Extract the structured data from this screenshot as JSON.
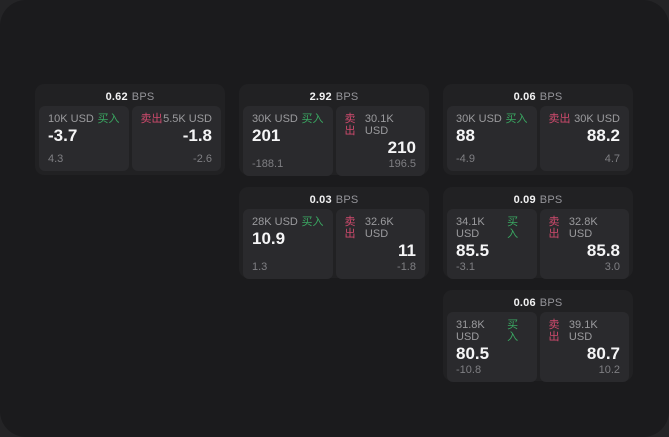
{
  "page": {
    "bps_label": "BPS",
    "buy_label": "买入",
    "sell_label": "卖出",
    "colors": {
      "outer_bg": "#242426",
      "panel_bg": "#1b1b1d",
      "card_bg": "#212123",
      "tile_bg": "#2a2a2d",
      "buy_green": "#3aa862",
      "sell_rose": "#cf4a6d"
    }
  },
  "cards": [
    {
      "bps": "0.62",
      "col": 1,
      "row": 1,
      "buy": {
        "size": "10K USD",
        "value": "-3.7",
        "sub": "4.3"
      },
      "sell": {
        "size": "5.5K USD",
        "value": "-1.8",
        "sub": "-2.6"
      }
    },
    {
      "bps": "2.92",
      "col": 2,
      "row": 1,
      "buy": {
        "size": "30K USD",
        "value": "201",
        "sub": "-188.1"
      },
      "sell": {
        "size": "30.1K USD",
        "value": "210",
        "sub": "196.5"
      }
    },
    {
      "bps": "0.06",
      "col": 3,
      "row": 1,
      "buy": {
        "size": "30K USD",
        "value": "88",
        "sub": "-4.9"
      },
      "sell": {
        "size": "30K USD",
        "value": "88.2",
        "sub": "4.7"
      }
    },
    {
      "bps": "0.03",
      "col": 2,
      "row": 2,
      "buy": {
        "size": "28K USD",
        "value": "10.9",
        "sub": "1.3"
      },
      "sell": {
        "size": "32.6K USD",
        "value": "11",
        "sub": "-1.8"
      }
    },
    {
      "bps": "0.09",
      "col": 3,
      "row": 2,
      "buy": {
        "size": "34.1K USD",
        "value": "85.5",
        "sub": "-3.1"
      },
      "sell": {
        "size": "32.8K USD",
        "value": "85.8",
        "sub": "3.0"
      }
    },
    {
      "bps": "0.06",
      "col": 3,
      "row": 3,
      "buy": {
        "size": "31.8K USD",
        "value": "80.5",
        "sub": "-10.8"
      },
      "sell": {
        "size": "39.1K USD",
        "value": "80.7",
        "sub": "10.2"
      }
    }
  ]
}
